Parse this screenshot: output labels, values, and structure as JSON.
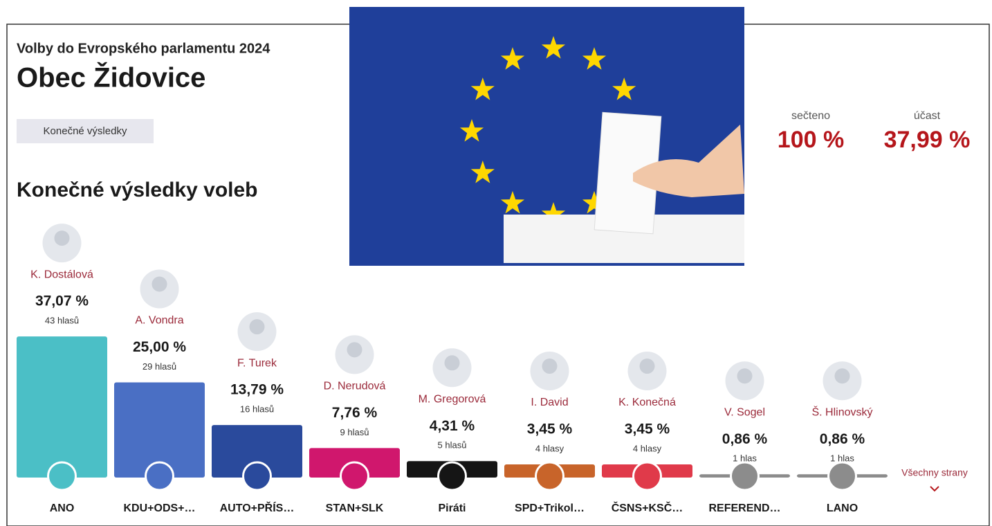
{
  "header": {
    "election": "Volby do Evropského parlamentu 2024",
    "title": "Obec Židovice",
    "badge": "Konečné výsledky"
  },
  "stats": [
    {
      "label": "sečteno",
      "value": "100 %"
    },
    {
      "label": "účast",
      "value": "37,99 %"
    }
  ],
  "chart_data": {
    "type": "bar",
    "title": "Konečné výsledky voleb",
    "categories": [
      "ANO",
      "KDU+ODS+…",
      "AUTO+PŘÍS…",
      "STAN+SLK",
      "Piráti",
      "SPD+Trikol…",
      "ČSNS+KSČ…",
      "REFEREND…",
      "LANO"
    ],
    "candidates": [
      "K. Dostálová",
      "A. Vondra",
      "F. Turek",
      "D. Nerudová",
      "M. Gregorová",
      "I. David",
      "K. Konečná",
      "V. Sogel",
      "Š. Hlinovský"
    ],
    "values": [
      37.07,
      25.0,
      13.79,
      7.76,
      4.31,
      3.45,
      3.45,
      0.86,
      0.86
    ],
    "value_labels": [
      "37,07 %",
      "25,00 %",
      "13,79 %",
      "7,76 %",
      "4,31 %",
      "3,45 %",
      "3,45 %",
      "0,86 %",
      "0,86 %"
    ],
    "vote_labels": [
      "43 hlasů",
      "29 hlasů",
      "16 hlasů",
      "9 hlasů",
      "5 hlasů",
      "4 hlasy",
      "4 hlasy",
      "1 hlas",
      "1 hlas"
    ],
    "colors": [
      "#4bbfc6",
      "#4a6fc4",
      "#2a4a9c",
      "#d0176d",
      "#151515",
      "#c8642a",
      "#e03a4a",
      "#8c8c8c",
      "#8c8c8c"
    ],
    "link": "Všechny strany"
  }
}
